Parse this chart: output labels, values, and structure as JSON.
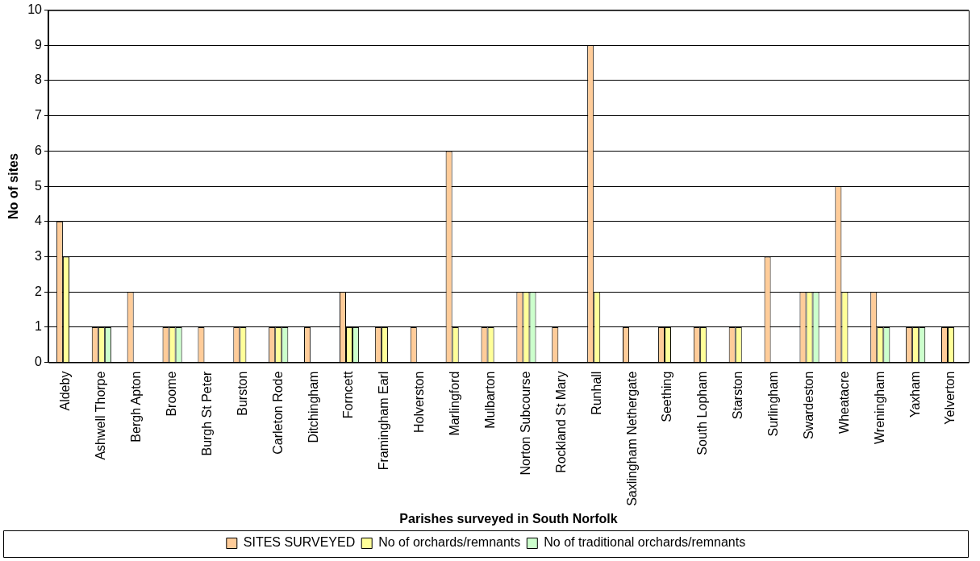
{
  "chart_data": {
    "type": "bar",
    "xlabel": "Parishes surveyed in South Norfolk",
    "ylabel": "No of sites",
    "categories": [
      "Aldeby",
      "Ashwell Thorpe",
      "Bergh Apton",
      "Broome",
      "Burgh St Peter",
      "Burston",
      "Carleton Rode",
      "Ditchingham",
      "Forncett",
      "Framingham Earl",
      "Holverston",
      "Marlingford",
      "Mulbarton",
      "Norton Subcourse",
      "Rockland St Mary",
      "Runhall",
      "Saxlingham Nethergate",
      "Seething",
      "South Lopham",
      "Starston",
      "Surlingham",
      "Swardeston",
      "Wheatacre",
      "Wreningham",
      "Yaxham",
      "Yelverton"
    ],
    "series": [
      {
        "name": "SITES SURVEYED",
        "color": "#ffcc99",
        "values": [
          4,
          1,
          2,
          1,
          1,
          1,
          1,
          1,
          2,
          1,
          1,
          6,
          1,
          2,
          1,
          9,
          1,
          1,
          1,
          1,
          3,
          2,
          5,
          2,
          1,
          1
        ]
      },
      {
        "name": "No of orchards/remnants",
        "color": "#ffff99",
        "values": [
          3,
          1,
          0,
          1,
          0,
          1,
          1,
          0,
          1,
          1,
          0,
          1,
          1,
          2,
          0,
          2,
          0,
          1,
          1,
          1,
          0,
          2,
          2,
          1,
          1,
          1
        ]
      },
      {
        "name": "No of traditional orchards/remnants",
        "color": "#ccffcc",
        "values": [
          0,
          1,
          0,
          1,
          0,
          0,
          1,
          0,
          1,
          0,
          0,
          0,
          0,
          2,
          0,
          0,
          0,
          0,
          0,
          0,
          0,
          2,
          0,
          1,
          1,
          0
        ]
      }
    ],
    "ylim": [
      0,
      10
    ],
    "yticks": [
      0,
      1,
      2,
      3,
      4,
      5,
      6,
      7,
      8,
      9,
      10
    ],
    "grid": "y",
    "legend": "bottom"
  }
}
